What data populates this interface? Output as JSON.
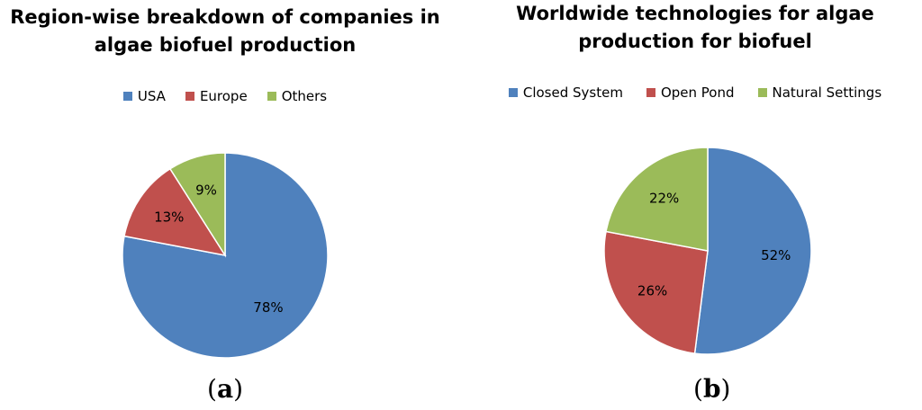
{
  "chart_data": [
    {
      "type": "pie",
      "title_line1": "Region-wise breakdown of companies in",
      "title_line2": "algae biofuel production",
      "caption_open": "(",
      "caption_letter": "a",
      "caption_close": ")",
      "legend_position": "top",
      "categories": [
        "USA",
        "Europe",
        "Others"
      ],
      "values": [
        78,
        13,
        9
      ],
      "value_labels": [
        "78%",
        "13%",
        "9%"
      ],
      "colors": [
        "#4F81BD",
        "#C0504D",
        "#9BBB59"
      ]
    },
    {
      "type": "pie",
      "title_line1": "Worldwide technologies for algae",
      "title_line2": "production for biofuel",
      "caption_open": "(",
      "caption_letter": "b",
      "caption_close": ")",
      "legend_position": "top",
      "categories": [
        "Closed System",
        "Open Pond",
        "Natural Settings"
      ],
      "values": [
        52,
        26,
        22
      ],
      "value_labels": [
        "52%",
        "26%",
        "22%"
      ],
      "colors": [
        "#4F81BD",
        "#C0504D",
        "#9BBB59"
      ]
    }
  ]
}
